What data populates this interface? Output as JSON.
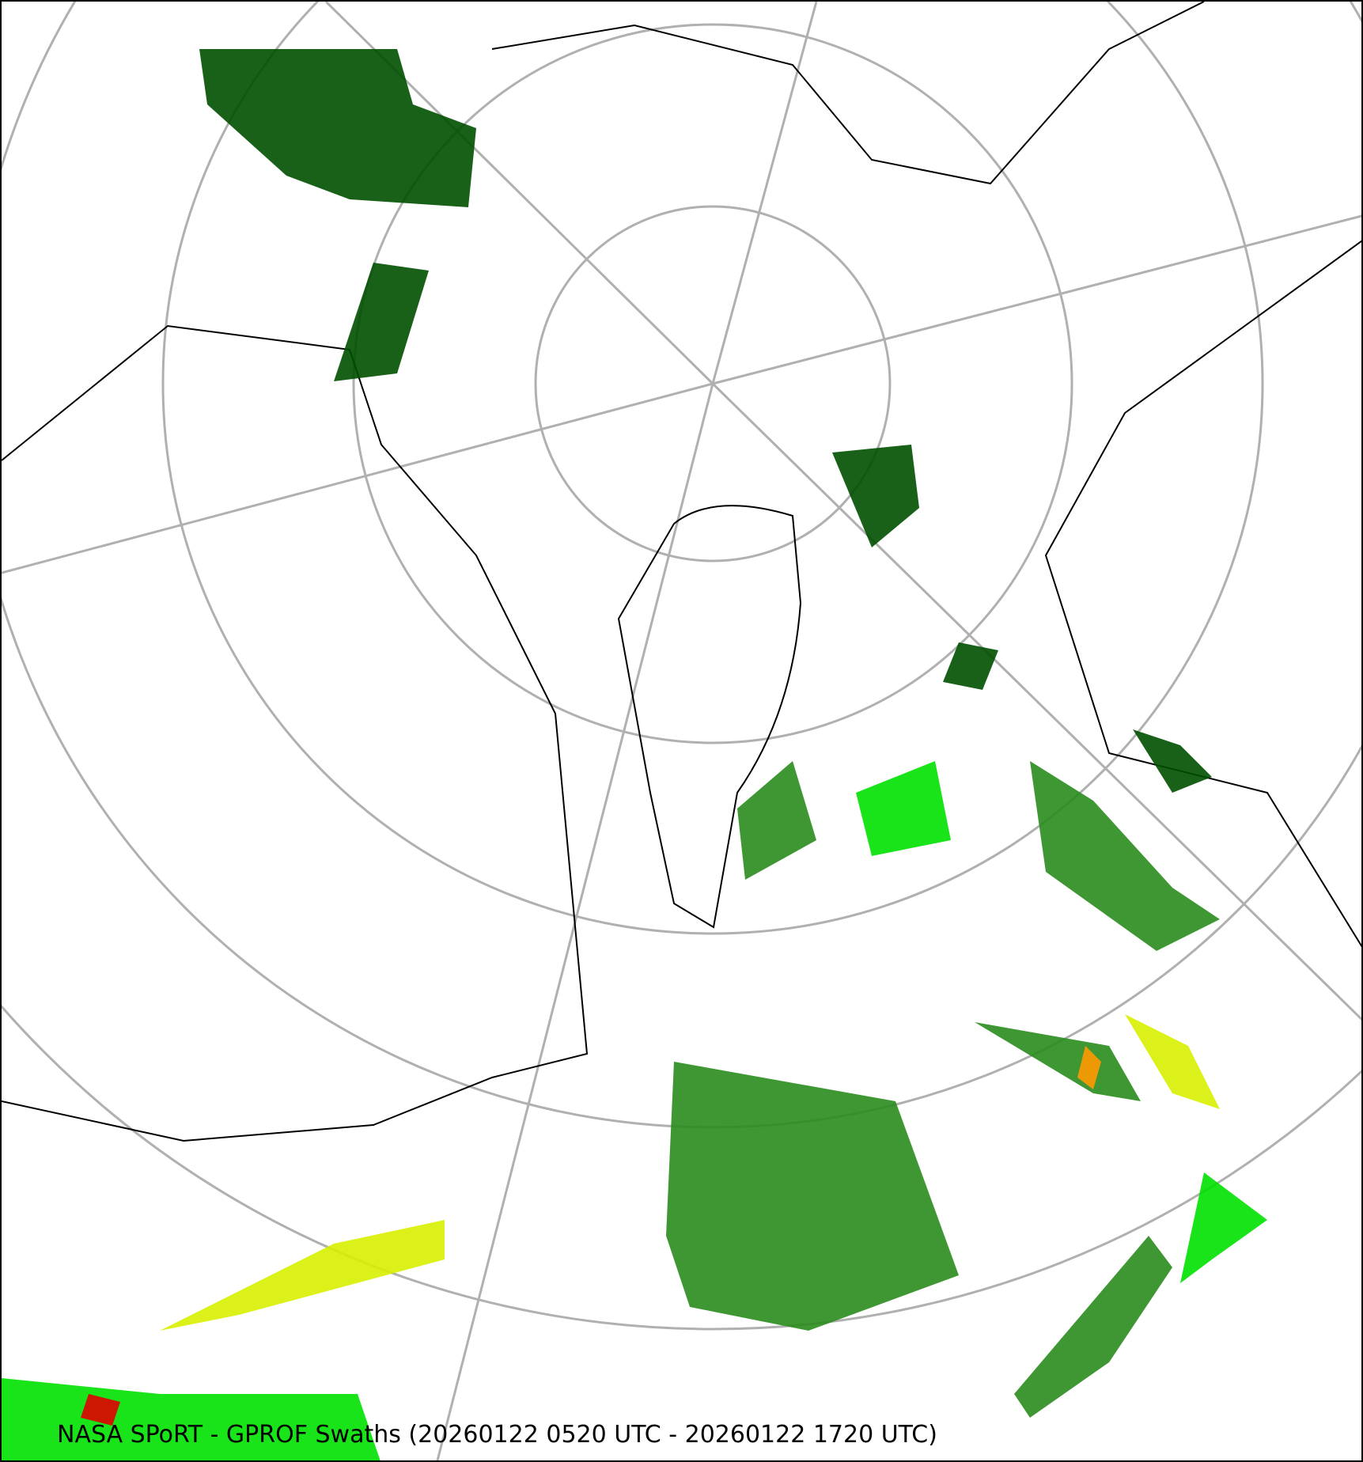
{
  "caption": "NASA SPoRT - GPROF Swaths (20260122 0520 UTC - 20260122 1720 UTC)",
  "projection": "north-polar-stereographic",
  "colors": {
    "graticule": "#b0b0b0",
    "coastline": "#000000",
    "precip_light": "#005000",
    "precip_moderate": "#2a8c1e",
    "precip_bright": "#00e000",
    "precip_yellow": "#d8f000",
    "precip_orange": "#ff9900",
    "precip_red": "#e00000"
  }
}
